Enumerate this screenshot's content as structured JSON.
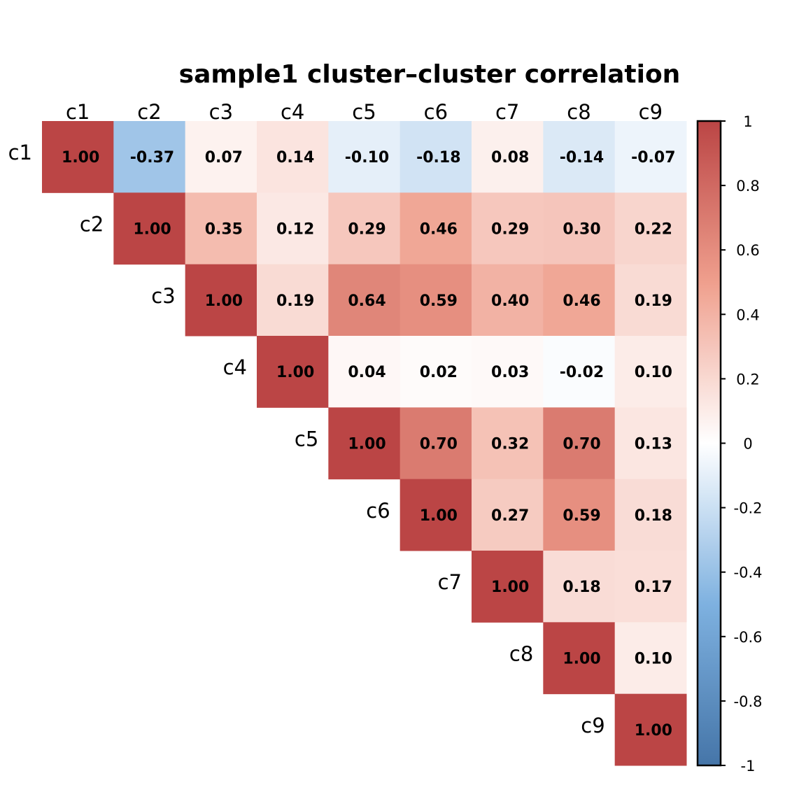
{
  "chart_data": {
    "type": "heatmap",
    "subtype": "correlation-upper-triangle",
    "title": "sample1 cluster–cluster correlation",
    "labels": [
      "c1",
      "c2",
      "c3",
      "c4",
      "c5",
      "c6",
      "c7",
      "c8",
      "c9"
    ],
    "matrix": [
      [
        1.0,
        -0.37,
        0.07,
        0.14,
        -0.1,
        -0.18,
        0.08,
        -0.14,
        -0.07
      ],
      [
        null,
        1.0,
        0.35,
        0.12,
        0.29,
        0.46,
        0.29,
        0.3,
        0.22
      ],
      [
        null,
        null,
        1.0,
        0.19,
        0.64,
        0.59,
        0.4,
        0.46,
        0.19
      ],
      [
        null,
        null,
        null,
        1.0,
        0.04,
        0.02,
        0.03,
        -0.02,
        0.1
      ],
      [
        null,
        null,
        null,
        null,
        1.0,
        0.7,
        0.32,
        0.7,
        0.13
      ],
      [
        null,
        null,
        null,
        null,
        null,
        1.0,
        0.27,
        0.59,
        0.18
      ],
      [
        null,
        null,
        null,
        null,
        null,
        null,
        1.0,
        0.18,
        0.17
      ],
      [
        null,
        null,
        null,
        null,
        null,
        null,
        null,
        1.0,
        0.1
      ],
      [
        null,
        null,
        null,
        null,
        null,
        null,
        null,
        null,
        1.0
      ]
    ],
    "value_format": "2 decimals",
    "colorbar": {
      "range": [
        -1,
        1
      ],
      "ticks": [
        1,
        0.8,
        0.6,
        0.4,
        0.2,
        0,
        -0.2,
        -0.4,
        -0.6,
        -0.8,
        -1
      ],
      "tick_labels": [
        "1",
        "0.8",
        "0.6",
        "0.4",
        "0.2",
        "0",
        "-0.2",
        "-0.4",
        "-0.6",
        "-0.8",
        "-1"
      ],
      "placement": "right"
    },
    "colors": {
      "negative_end": "#4575a8",
      "negative_mid": "#7eb1e0",
      "zero": "#ffffff",
      "positive_mid": "#ef9f8d",
      "positive_end": "#bb4545"
    },
    "xlabel": "",
    "ylabel": "",
    "grid": false
  }
}
